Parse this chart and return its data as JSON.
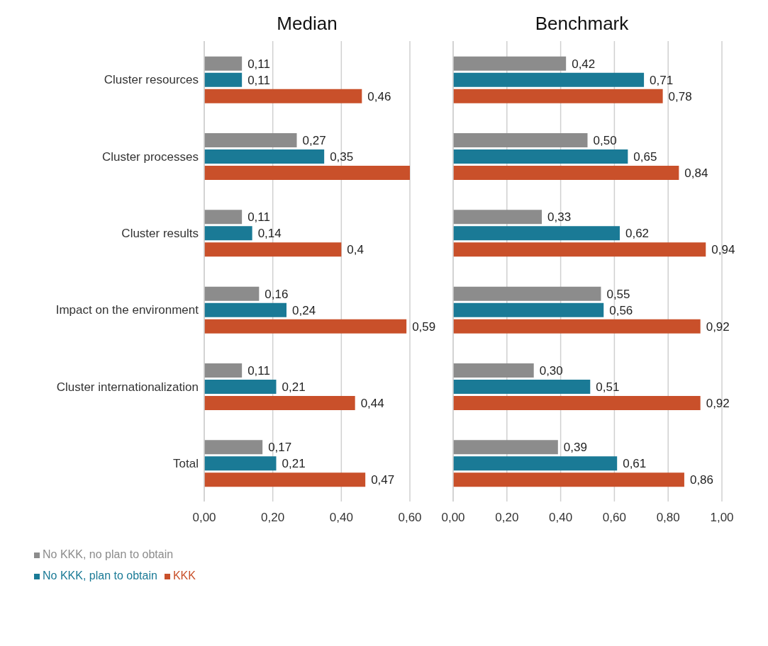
{
  "chart_data": [
    {
      "type": "bar",
      "orientation": "horizontal",
      "title": "Median",
      "categories": [
        "Cluster resources",
        "Cluster processes",
        "Cluster results",
        "Impact on the environment",
        "Cluster internationalization",
        "Total"
      ],
      "series": [
        {
          "name": "No KKK, no plan to obtain",
          "color": "#8c8c8c",
          "values": [
            0.11,
            0.27,
            0.11,
            0.16,
            0.11,
            0.17
          ],
          "value_labels": [
            "0,11",
            "0,27",
            "0,11",
            "0,16",
            "0,11",
            "0,17"
          ]
        },
        {
          "name": "No KKK, plan to obtain",
          "color": "#1a7a96",
          "values": [
            0.11,
            0.35,
            0.14,
            0.24,
            0.21,
            0.21
          ],
          "value_labels": [
            "0,11",
            "0,35",
            "0,14",
            "0,24",
            "0,21",
            "0,21"
          ]
        },
        {
          "name": "KKK",
          "color": "#c9502a",
          "values": [
            0.46,
            0.6,
            0.4,
            0.59,
            0.44,
            0.47
          ],
          "value_labels": [
            "0,46",
            null,
            "0,4",
            "0,59",
            "0,44",
            "0,47"
          ]
        }
      ],
      "xlim": [
        0,
        0.6
      ],
      "xticks": [
        {
          "value": 0,
          "label": "0,00"
        },
        {
          "value": 0.2,
          "label": "0,20"
        },
        {
          "value": 0.4,
          "label": "0,40"
        },
        {
          "value": 0.6,
          "label": "0,60"
        }
      ],
      "grid": "x",
      "legend": "bottom"
    },
    {
      "type": "bar",
      "orientation": "horizontal",
      "title": "Benchmark",
      "categories": [
        null,
        null,
        null,
        null,
        null,
        null
      ],
      "series": [
        {
          "color": "#8c8c8c",
          "values": [
            0.42,
            0.5,
            0.33,
            0.55,
            0.3,
            0.39
          ],
          "value_labels": [
            "0,42",
            "0,50",
            "0,33",
            "0,55",
            "0,30",
            "0,39"
          ]
        },
        {
          "color": "#1a7a96",
          "values": [
            0.71,
            0.65,
            0.62,
            0.56,
            0.51,
            0.61
          ],
          "value_labels": [
            "0,71",
            "0,65",
            "0,62",
            "0,56",
            "0,51",
            "0,61"
          ]
        },
        {
          "color": "#c9502a",
          "values": [
            0.78,
            0.84,
            0.94,
            0.92,
            0.92,
            0.86
          ],
          "value_labels": [
            "0,78",
            "0,84",
            "0,94",
            "0,92",
            "0,92",
            "0,86"
          ]
        }
      ],
      "xlim": [
        0,
        1
      ],
      "xticks": [
        {
          "value": 0,
          "label": "0,00"
        },
        {
          "value": 0.2,
          "label": "0,20"
        },
        {
          "value": 0.4,
          "label": "0,40"
        },
        {
          "value": 0.6,
          "label": "0,60"
        },
        {
          "value": 0.8,
          "label": "0,80"
        },
        {
          "value": 1,
          "label": "1,00"
        }
      ],
      "grid": "x",
      "tick_labels": "x"
    }
  ]
}
